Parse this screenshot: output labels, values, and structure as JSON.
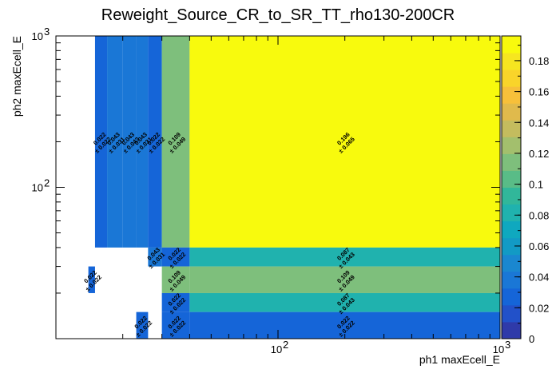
{
  "chart_data": {
    "type": "heatmap",
    "title": "Reweight_Source_CR_to_SR_TT_rho130-200CR",
    "xlabel": "ph1 maxEcell_E",
    "ylabel": "ph2 maxEcell_E",
    "x_scale": "log",
    "y_scale": "log",
    "xlim": [
      10,
      1000
    ],
    "ylim": [
      10,
      1000
    ],
    "x_ticks": [
      {
        "value": 100,
        "label": "10",
        "exp": "2"
      },
      {
        "value": 1000,
        "label": "10",
        "exp": "3"
      }
    ],
    "y_ticks": [
      {
        "value": 100,
        "label": "10",
        "exp": "2"
      },
      {
        "value": 1000,
        "label": "10",
        "exp": "3"
      }
    ],
    "cells": [
      {
        "x0": 15,
        "x1": 17,
        "y0": 40,
        "y1": 1000,
        "value": 0.022,
        "error": 0.022,
        "label": "0.022",
        "err_label": "± 0.022"
      },
      {
        "x0": 17,
        "x1": 20,
        "y0": 40,
        "y1": 1000,
        "value": 0.043,
        "error": 0.031,
        "label": "0.043",
        "err_label": "± 0.031"
      },
      {
        "x0": 20,
        "x1": 23,
        "y0": 40,
        "y1": 1000,
        "value": 0.043,
        "error": 0.043,
        "label": "0.043",
        "err_label": "± 0.043"
      },
      {
        "x0": 23,
        "x1": 26,
        "y0": 40,
        "y1": 1000,
        "value": 0.043,
        "error": 0.031,
        "label": "0.043",
        "err_label": "± 0.031"
      },
      {
        "x0": 26,
        "x1": 30,
        "y0": 40,
        "y1": 1000,
        "value": 0.022,
        "error": 0.022,
        "label": "0.022",
        "err_label": "± 0.022"
      },
      {
        "x0": 30,
        "x1": 40,
        "y0": 40,
        "y1": 1000,
        "value": 0.109,
        "error": 0.049,
        "label": "0.109",
        "err_label": "± 0.049"
      },
      {
        "x0": 40,
        "x1": 1000,
        "y0": 40,
        "y1": 1000,
        "value": 0.196,
        "error": 0.065,
        "label": "0.196",
        "err_label": "± 0.065"
      },
      {
        "x0": 14,
        "x1": 15,
        "y0": 20,
        "y1": 30,
        "value": 0.022,
        "error": 0.022,
        "label": "0.022",
        "err_label": "± 0.022"
      },
      {
        "x0": 26,
        "x1": 30,
        "y0": 30,
        "y1": 40,
        "value": 0.043,
        "error": 0.031,
        "label": "0.043",
        "err_label": "± 0.031"
      },
      {
        "x0": 30,
        "x1": 40,
        "y0": 30,
        "y1": 40,
        "value": 0.022,
        "error": 0.022,
        "label": "0.022",
        "err_label": "± 0.022"
      },
      {
        "x0": 40,
        "x1": 1000,
        "y0": 30,
        "y1": 40,
        "value": 0.087,
        "error": 0.043,
        "label": "0.087",
        "err_label": "± 0.043"
      },
      {
        "x0": 30,
        "x1": 40,
        "y0": 20,
        "y1": 30,
        "value": 0.109,
        "error": 0.049,
        "label": "0.109",
        "err_label": "± 0.049"
      },
      {
        "x0": 40,
        "x1": 1000,
        "y0": 20,
        "y1": 30,
        "value": 0.109,
        "error": 0.049,
        "label": "0.109",
        "err_label": "± 0.049"
      },
      {
        "x0": 30,
        "x1": 40,
        "y0": 15,
        "y1": 20,
        "value": 0.022,
        "error": 0.022,
        "label": "0.022",
        "err_label": "± 0.022"
      },
      {
        "x0": 40,
        "x1": 1000,
        "y0": 15,
        "y1": 20,
        "value": 0.087,
        "error": 0.043,
        "label": "0.087",
        "err_label": "± 0.043"
      },
      {
        "x0": 23,
        "x1": 26,
        "y0": 10,
        "y1": 15,
        "value": 0.022,
        "error": 0.022,
        "label": "0.022",
        "err_label": "± 0.022"
      },
      {
        "x0": 30,
        "x1": 40,
        "y0": 10,
        "y1": 15,
        "value": 0.022,
        "error": 0.022,
        "label": "0.022",
        "err_label": "± 0.022"
      },
      {
        "x0": 40,
        "x1": 1000,
        "y0": 10,
        "y1": 15,
        "value": 0.022,
        "error": 0.022,
        "label": "0.022",
        "err_label": "± 0.022"
      }
    ],
    "colorbar": {
      "range": [
        0,
        0.196
      ],
      "ticks": [
        {
          "value": 0,
          "label": "0"
        },
        {
          "value": 0.02,
          "label": "0.02"
        },
        {
          "value": 0.04,
          "label": "0.04"
        },
        {
          "value": 0.06,
          "label": "0.06"
        },
        {
          "value": 0.08,
          "label": "0.08"
        },
        {
          "value": 0.1,
          "label": "0.1"
        },
        {
          "value": 0.12,
          "label": "0.12"
        },
        {
          "value": 0.14,
          "label": "0.14"
        },
        {
          "value": 0.16,
          "label": "0.16"
        },
        {
          "value": 0.18,
          "label": "0.18"
        }
      ],
      "palette": [
        "#2f3aa9",
        "#2251c9",
        "#1565d8",
        "#1a77d6",
        "#1a87d0",
        "#129ac5",
        "#0fa8bf",
        "#20b2ae",
        "#31b79a",
        "#59bc87",
        "#7ebf7c",
        "#a3bf6d",
        "#c4bc5e",
        "#e0ba4c",
        "#f7c03a",
        "#f9d42a",
        "#f6e620",
        "#f8fa0d"
      ]
    }
  }
}
